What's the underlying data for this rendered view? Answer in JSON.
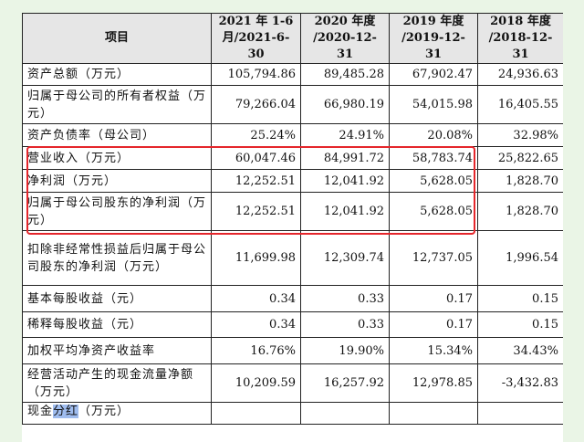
{
  "table": {
    "columns": [
      "项目",
      "2021 年 1-6 月/2021-6-30",
      "2020 年度 /2020-12-31",
      "2019 年度 /2019-12-31",
      "2018 年度 /2018-12-31"
    ],
    "col_lines": [
      [
        "项目"
      ],
      [
        "2021 年 1-6",
        "月/2021-6-30"
      ],
      [
        "2020 年度",
        "/2020-12-31"
      ],
      [
        "2019 年度",
        "/2019-12-31"
      ],
      [
        "2018 年度",
        "/2018-12-31"
      ]
    ],
    "rows": [
      {
        "label": "资产总额（万元）",
        "values": [
          "105,794.86",
          "89,485.28",
          "67,902.47",
          "24,936.63"
        ]
      },
      {
        "label": "归属于母公司的所有者权益（万元）",
        "values": [
          "79,266.04",
          "66,980.19",
          "54,015.98",
          "16,405.55"
        ]
      },
      {
        "label": "资产负债率（母公司）",
        "values": [
          "25.24%",
          "24.91%",
          "20.08%",
          "32.98%"
        ]
      },
      {
        "label": "营业收入（万元）",
        "values": [
          "60,047.46",
          "84,991.72",
          "58,783.74",
          "25,822.65"
        ]
      },
      {
        "label": "净利润（万元）",
        "values": [
          "12,252.51",
          "12,041.92",
          "5,628.05",
          "1,828.70"
        ]
      },
      {
        "label": "归属于母公司股东的净利润（万元）",
        "values": [
          "12,252.51",
          "12,041.92",
          "5,628.05",
          "1,828.70"
        ]
      },
      {
        "label": "扣除非经常性损益后归属于母公司股东的净利润（万元）",
        "values": [
          "11,699.98",
          "12,309.74",
          "12,737.05",
          "1,996.54"
        ]
      },
      {
        "label": "基本每股收益（元）",
        "values": [
          "0.34",
          "0.33",
          "0.17",
          "0.15"
        ]
      },
      {
        "label": "稀释每股收益（元）",
        "values": [
          "0.34",
          "0.33",
          "0.17",
          "0.15"
        ]
      },
      {
        "label": "加权平均净资产收益率",
        "values": [
          "16.76%",
          "19.90%",
          "15.34%",
          "34.43%"
        ]
      },
      {
        "label": "经营活动产生的现金流量净额（万元）",
        "values": [
          "10,209.59",
          "16,257.92",
          "12,978.85",
          "-3,432.83"
        ]
      }
    ],
    "truncated_row": {
      "label_pre": "现金",
      "label_hl": "分红",
      "label_post": "（万元）"
    }
  },
  "colors": {
    "page_background": "#eaf5e6",
    "header_background": "#e6e6e6",
    "highlight_border": "#e5262b",
    "selection_highlight": "#9fbcee"
  }
}
